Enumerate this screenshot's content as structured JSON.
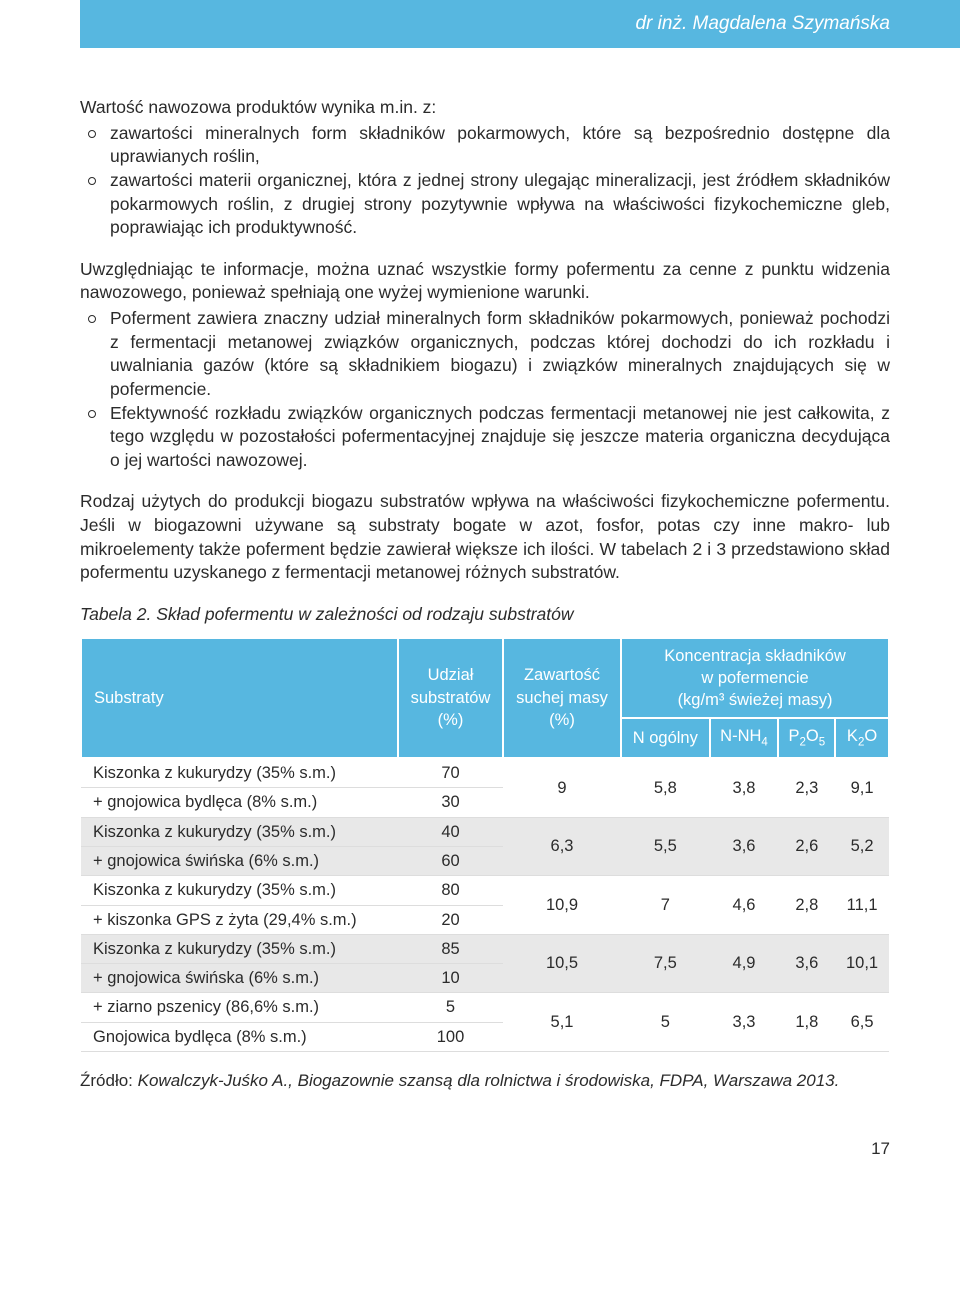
{
  "header": {
    "author": "dr inż. Magdalena Szymańska"
  },
  "body": {
    "lead": "Wartość nawozowa produktów wynika m.in. z:",
    "bullets1": [
      "zawartości mineralnych form składników pokarmowych, które są bezpośrednio dostępne dla uprawianych roślin,",
      "zawartości materii organicznej, która z jednej strony ulegając mineralizacji, jest źródłem składników pokarmowych roślin, z drugiej strony pozytywnie wpływa na właściwości fizykochemiczne gleb, poprawiając ich produktywność."
    ],
    "para2": "Uwzględniając te informacje, można uznać wszystkie formy pofermentu za cenne z punktu widzenia nawozowego, ponieważ spełniają one wyżej wymienione warunki.",
    "bullets2": [
      "Poferment zawiera znaczny udział mineralnych form składników pokarmowych, ponieważ pochodzi z fermentacji metanowej związków organicznych, podczas której dochodzi do ich rozkładu i uwalniania gazów (które są składnikiem biogazu) i związków mineralnych znajdujących się w pofermencie.",
      "Efektywność rozkładu związków organicznych podczas fermentacji metanowej nie jest całkowita, z tego względu w pozostałości pofermentacyjnej znajduje się jeszcze materia organiczna decydująca o jej wartości nawozowej."
    ],
    "para3": "Rodzaj użytych do produkcji biogazu substratów wpływa na właściwości fizykochemiczne pofermentu. Jeśli w biogazowni używane są substraty bogate w azot, fosfor, potas czy inne makro- lub mikroelementy także poferment będzie zawierał większe ich ilości. W tabelach 2 i 3 przedstawiono skład pofermentu uzyskanego z fermentacji metanowej różnych substratów."
  },
  "table": {
    "caption": "Tabela 2. Skład pofermentu w zależności od rodzaju substratów",
    "headers": {
      "col1": "Substraty",
      "col2_l1": "Udział",
      "col2_l2": "substratów",
      "col2_l3": "(%)",
      "col3_l1": "Zawartość",
      "col3_l2": "suchej masy",
      "col3_l3": "(%)",
      "col4_l1": "Koncentracja składników",
      "col4_l2": "w pofermencie",
      "col4_l3": "(kg/m³ świeżej masy)",
      "sub1": "N ogólny",
      "sub2": "N-NH",
      "sub2_s": "4",
      "sub3a": "P",
      "sub3b": "2",
      "sub3c": "O",
      "sub3d": "5",
      "sub4a": "K",
      "sub4b": "2",
      "sub4c": "O"
    },
    "rows": [
      {
        "stripe": false,
        "sub": [
          "Kiszonka z kukurydzy (35% s.m.)",
          "+ gnojowica bydlęca (8% s.m.)"
        ],
        "share": [
          "70",
          "30"
        ],
        "sm": "9",
        "n": "5,8",
        "nnh": "3,8",
        "p": "2,3",
        "k": "9,1"
      },
      {
        "stripe": true,
        "sub": [
          "Kiszonka z kukurydzy (35% s.m.)",
          "+ gnojowica świńska (6% s.m.)"
        ],
        "share": [
          "40",
          "60"
        ],
        "sm": "6,3",
        "n": "5,5",
        "nnh": "3,6",
        "p": "2,6",
        "k": "5,2"
      },
      {
        "stripe": false,
        "sub": [
          "Kiszonka z kukurydzy (35% s.m.)",
          "+ kiszonka GPS z żyta (29,4% s.m.)"
        ],
        "share": [
          "80",
          "20"
        ],
        "sm": "10,9",
        "n": "7",
        "nnh": "4,6",
        "p": "2,8",
        "k": "11,1"
      },
      {
        "stripe": true,
        "sub": [
          "Kiszonka z kukurydzy (35% s.m.)",
          "+ gnojowica świńska (6% s.m.)"
        ],
        "share": [
          "85",
          "10"
        ],
        "sm": "10,5",
        "n": "7,5",
        "nnh": "4,9",
        "p": "3,6",
        "k": "10,1"
      },
      {
        "stripe": false,
        "sub": [
          "+ ziarno pszenicy (86,6% s.m.)",
          "Gnojowica bydlęca (8% s.m.)"
        ],
        "share": [
          "5",
          "100"
        ],
        "sm": "5,1",
        "n": "5",
        "nnh": "3,3",
        "p": "1,8",
        "k": "6,5"
      }
    ]
  },
  "source": {
    "label": "Źródło: ",
    "text": "Kowalczyk-Juśko A., Biogazownie szansą dla rolnictwa i środowiska, FDPA, Warszawa 2013."
  },
  "page": "17"
}
